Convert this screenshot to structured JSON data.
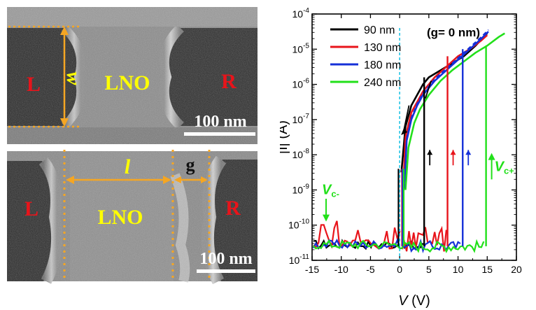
{
  "sem_panels": {
    "top": {
      "left_label": "L",
      "center_label": "LNO",
      "right_label": "R",
      "dim_label": "w",
      "scale_bar": "100 nm"
    },
    "bottom": {
      "left_label": "L",
      "center_label": "LNO",
      "right_label": "R",
      "length_label": "l",
      "gap_label": "g",
      "scale_bar": "100 nm"
    },
    "colors": {
      "electrode_label": "#e8141b",
      "lno_label": "#ffff00",
      "dimension_lines": "#f5a623",
      "scale_text": "#ffffff"
    }
  },
  "chart_data": {
    "type": "line",
    "title": "",
    "xlabel": "V (V)",
    "ylabel": "|I| (A)",
    "xlim": [
      -15,
      20
    ],
    "ylim_log10": [
      -11,
      -4
    ],
    "y_scale": "log",
    "x_ticks": [
      -15,
      -10,
      -5,
      0,
      5,
      10,
      15,
      20
    ],
    "x_tick_labels": [
      "-15",
      "-10",
      "-5",
      "0",
      "5",
      "10",
      "15",
      "20"
    ],
    "y_tick_labels": [
      "10-11",
      "10-10",
      "10-9",
      "10-8",
      "10-7",
      "10-6",
      "10-5",
      "10-4"
    ],
    "annotation": "(g= 0 nm)",
    "vc_minus_label": "V",
    "vc_minus_sub": "c-",
    "vc_plus_label": "V",
    "vc_plus_sub": "c+",
    "legend_position": "top-left",
    "series": [
      {
        "name": "90 nm",
        "color": "#000000",
        "vc_plus": 4.2,
        "vc_minus": -0.2,
        "noise_level": -10.6,
        "curve": [
          [
            0.3,
            -8.5
          ],
          [
            1,
            -7.2
          ],
          [
            2,
            -6.6
          ],
          [
            3,
            -6.3
          ],
          [
            4,
            -6.0
          ],
          [
            5,
            -5.8
          ],
          [
            7,
            -5.6
          ],
          [
            9,
            -5.4
          ],
          [
            11,
            -5.2
          ],
          [
            13,
            -4.9
          ],
          [
            15,
            -4.55
          ]
        ]
      },
      {
        "name": "130 nm",
        "color": "#e8141b",
        "vc_plus": 8.2,
        "vc_minus": 0.4,
        "noise_level": -10.0,
        "curve": [
          [
            0.6,
            -9.0
          ],
          [
            1,
            -7.5
          ],
          [
            2,
            -6.8
          ],
          [
            3,
            -6.5
          ],
          [
            4,
            -6.2
          ],
          [
            6,
            -5.8
          ],
          [
            8,
            -5.5
          ],
          [
            10,
            -5.2
          ],
          [
            12,
            -5.0
          ],
          [
            14,
            -4.75
          ],
          [
            15,
            -4.6
          ]
        ]
      },
      {
        "name": "180 nm",
        "color": "#1530d8",
        "vc_plus": 10.8,
        "vc_minus": 0.5,
        "noise_level": -10.6,
        "curve": [
          [
            0.8,
            -9.0
          ],
          [
            1.2,
            -7.6
          ],
          [
            2,
            -7.0
          ],
          [
            3,
            -6.6
          ],
          [
            4,
            -6.3
          ],
          [
            6,
            -5.9
          ],
          [
            8,
            -5.6
          ],
          [
            10,
            -5.3
          ],
          [
            12,
            -5.0
          ],
          [
            14,
            -4.7
          ],
          [
            15.2,
            -4.5
          ]
        ]
      },
      {
        "name": "240 nm",
        "color": "#22e01a",
        "vc_plus": 14.8,
        "vc_minus": 0.7,
        "noise_level": -10.6,
        "curve": [
          [
            1.0,
            -9.0
          ],
          [
            1.5,
            -7.8
          ],
          [
            2.5,
            -7.1
          ],
          [
            3.5,
            -6.7
          ],
          [
            5,
            -6.3
          ],
          [
            7,
            -5.9
          ],
          [
            9,
            -5.6
          ],
          [
            11,
            -5.35
          ],
          [
            13,
            -5.1
          ],
          [
            15,
            -4.9
          ],
          [
            17,
            -4.65
          ],
          [
            18,
            -4.55
          ]
        ]
      }
    ]
  }
}
